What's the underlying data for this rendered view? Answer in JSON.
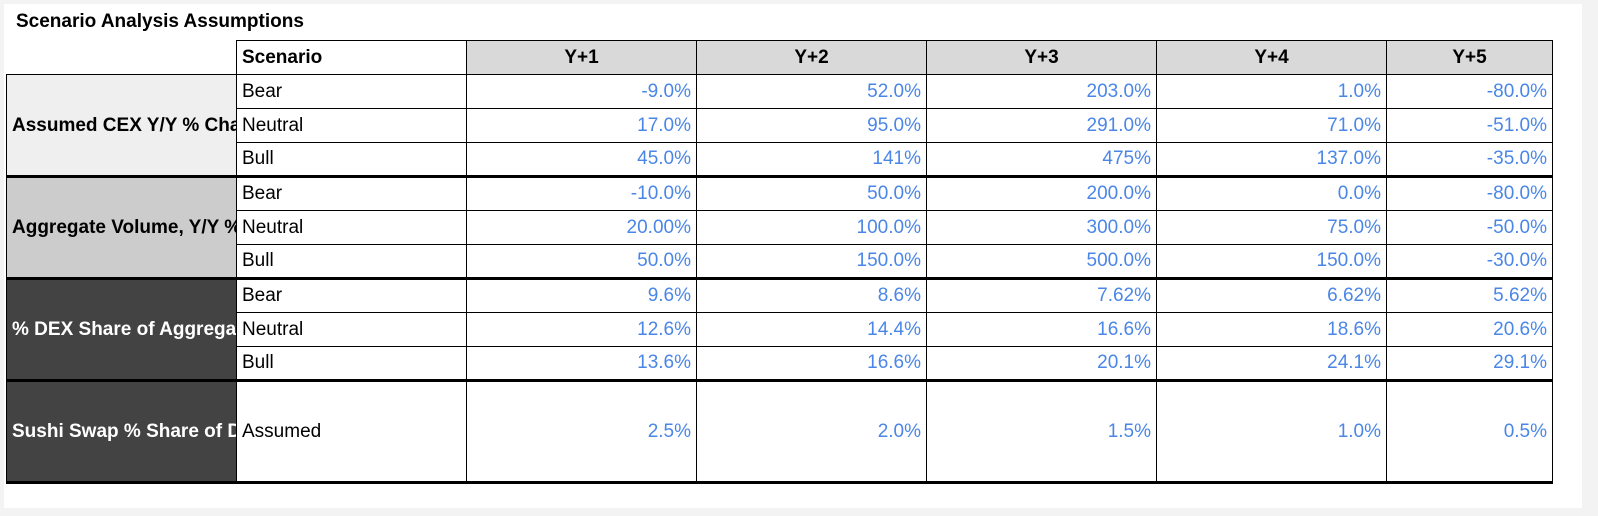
{
  "title": "Scenario Analysis Assumptions",
  "header": {
    "scenario": "Scenario",
    "years": [
      "Y+1",
      "Y+2",
      "Y+3",
      "Y+4",
      "Y+5"
    ]
  },
  "groups": [
    {
      "label": "Assumed CEX Y/Y % Change",
      "rows": [
        {
          "scenario": "Bear",
          "values": [
            "-9.0%",
            "52.0%",
            "203.0%",
            "1.0%",
            "-80.0%"
          ]
        },
        {
          "scenario": "Neutral",
          "values": [
            "17.0%",
            "95.0%",
            "291.0%",
            "71.0%",
            "-51.0%"
          ]
        },
        {
          "scenario": "Bull",
          "values": [
            "45.0%",
            "141%",
            "475%",
            "137.0%",
            "-35.0%"
          ]
        }
      ]
    },
    {
      "label": "Aggregate Volume, Y/Y % Change",
      "rows": [
        {
          "scenario": "Bear",
          "values": [
            "-10.0%",
            "50.0%",
            "200.0%",
            "0.0%",
            "-80.0%"
          ]
        },
        {
          "scenario": "Neutral",
          "values": [
            "20.00%",
            "100.0%",
            "300.0%",
            "75.0%",
            "-50.0%"
          ]
        },
        {
          "scenario": "Bull",
          "values": [
            "50.0%",
            "150.0%",
            "500.0%",
            "150.0%",
            "-30.0%"
          ]
        }
      ]
    },
    {
      "label": "% DEX Share of Aggregated Volume",
      "rows": [
        {
          "scenario": "Bear",
          "values": [
            "9.6%",
            "8.6%",
            "7.62%",
            "6.62%",
            "5.62%"
          ]
        },
        {
          "scenario": "Neutral",
          "values": [
            "12.6%",
            "14.4%",
            "16.6%",
            "18.6%",
            "20.6%"
          ]
        },
        {
          "scenario": "Bull",
          "values": [
            "13.6%",
            "16.6%",
            "20.1%",
            "24.1%",
            "29.1%"
          ]
        }
      ]
    },
    {
      "label": "Sushi Swap % Share of DEX Volume",
      "rows": [
        {
          "scenario": "Assumed",
          "values": [
            "2.5%",
            "2.0%",
            "1.5%",
            "1.0%",
            "0.5%"
          ]
        }
      ]
    }
  ],
  "colors": {
    "value_text": "#4a86e8",
    "header_fill": "#d9d9d9",
    "group1_fill": "#efefef",
    "group2_fill": "#cccccc",
    "group3_fill": "#434343",
    "group4_fill": "#434343"
  }
}
